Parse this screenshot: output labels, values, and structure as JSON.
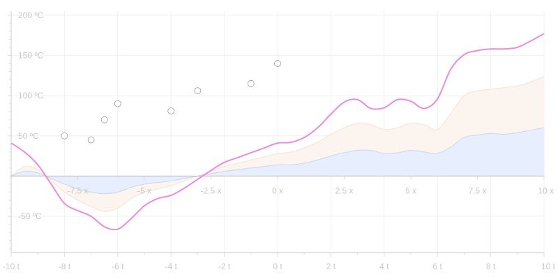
{
  "chart_data": {
    "type": "area",
    "x_bottom": {
      "range": [
        -10,
        10
      ],
      "ticks": [
        -10,
        -8,
        -6,
        -4,
        -2,
        0,
        2,
        4,
        6,
        8,
        10
      ],
      "tick_labels": [
        "-10 t",
        "-8 t",
        "-6 t",
        "-4 t",
        "-2 t",
        "0 t",
        "2 t",
        "4 t",
        "6 t",
        "8 t",
        "10 t"
      ]
    },
    "x_inner": {
      "ticks": [
        -7.5,
        -5,
        -2.5,
        0,
        2.5,
        5,
        7.5,
        10
      ],
      "tick_labels": [
        "-7.5 x",
        "-5 x",
        "-2.5 x",
        "0 x",
        "2.5 x",
        "5 x",
        "7.5 x",
        "10 x"
      ]
    },
    "y": {
      "range": [
        -95,
        205
      ],
      "ticks": [
        200,
        150,
        100,
        50,
        -50
      ],
      "tick_labels": [
        "200 ºC",
        "150 ºC",
        "100 ºC",
        "50 ºC",
        "-50 ºC"
      ],
      "grid": true
    },
    "series": [
      {
        "color": "#e7efff",
        "stroke": "#c7d6f3",
        "x": [
          -10,
          -9.5,
          -9,
          -8.5,
          -8,
          -7.5,
          -7,
          -6.5,
          -6,
          -5.5,
          -5,
          -4.5,
          -4,
          -3.5,
          -3,
          -2.5,
          -2,
          -1.5,
          -1,
          -0.5,
          0,
          0.5,
          1,
          1.5,
          2,
          2.5,
          3,
          3.5,
          4,
          4.5,
          5,
          5.5,
          6,
          6.5,
          7,
          7.5,
          8,
          8.5,
          9,
          9.5,
          10
        ],
        "y": [
          0,
          6,
          4,
          -3,
          -10,
          -16,
          -20,
          -22,
          -20,
          -14,
          -10,
          -8,
          -6,
          -3,
          0,
          3,
          6,
          8,
          10,
          12,
          14,
          14,
          16,
          20,
          25,
          29,
          32,
          32,
          28,
          29,
          32,
          30,
          28,
          36,
          48,
          51,
          53,
          52,
          54,
          57,
          60
        ]
      },
      {
        "color": "#fbf4ef",
        "stroke": "#f4e2d6",
        "x": [
          -10,
          -9.5,
          -9,
          -8.5,
          -8,
          -7.5,
          -7,
          -6.5,
          -6,
          -5.5,
          -5,
          -4.5,
          -4,
          -3.5,
          -3,
          -2.5,
          -2,
          -1.5,
          -1,
          -0.5,
          0,
          0.5,
          1,
          1.5,
          2,
          2.5,
          3,
          3.5,
          4,
          4.5,
          5,
          5.5,
          6,
          6.5,
          7,
          7.5,
          8,
          8.5,
          9,
          9.5,
          10
        ],
        "y": [
          0,
          12,
          8,
          -6,
          -20,
          -30,
          -38,
          -44,
          -40,
          -28,
          -20,
          -16,
          -12,
          -6,
          0,
          6,
          12,
          16,
          20,
          24,
          28,
          30,
          35,
          42,
          52,
          60,
          66,
          64,
          58,
          60,
          66,
          64,
          58,
          78,
          100,
          106,
          108,
          110,
          112,
          117,
          124
        ]
      },
      {
        "color": "#e98ddb",
        "stroke": "#e98ddb",
        "fill": false,
        "x": [
          -10,
          -9.5,
          -9,
          -8.5,
          -8,
          -7.5,
          -7,
          -6.5,
          -6,
          -5.5,
          -5,
          -4.5,
          -4,
          -3.5,
          -3,
          -2.5,
          -2,
          -1.5,
          -1,
          -0.5,
          0,
          0.5,
          1,
          1.5,
          2,
          2.5,
          3,
          3.5,
          4,
          4.5,
          5,
          5.5,
          6,
          6.5,
          7,
          7.5,
          8,
          8.5,
          9,
          9.5,
          10
        ],
        "y": [
          41,
          30,
          14,
          -10,
          -34,
          -43,
          -50,
          -63,
          -66,
          -53,
          -37,
          -28,
          -24,
          -15,
          -4,
          7,
          17,
          23,
          29,
          35,
          41,
          42,
          48,
          60,
          77,
          92,
          95,
          84,
          85,
          95,
          93,
          84,
          96,
          133,
          151,
          156,
          158,
          158,
          160,
          168,
          177
        ]
      }
    ],
    "scatter": {
      "x": [
        -8,
        -7,
        -6.5,
        -6,
        -4,
        -3,
        -1,
        0
      ],
      "y": [
        50,
        45,
        70,
        90,
        81,
        106,
        115,
        140
      ]
    }
  }
}
